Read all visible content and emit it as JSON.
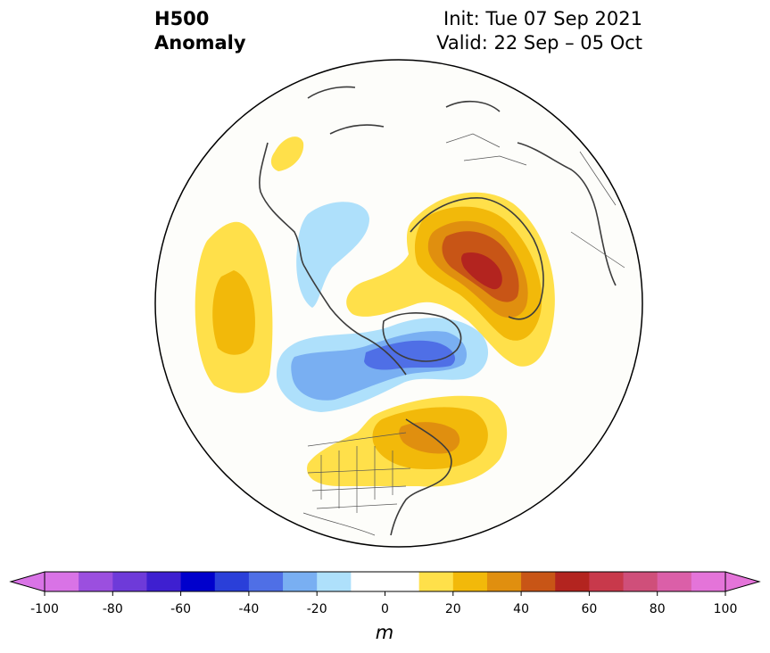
{
  "header": {
    "title_line1": "H500",
    "title_line2": "Anomaly",
    "init": "Init: Tue 07 Sep 2021",
    "valid": "Valid: 22 Sep – 05 Oct"
  },
  "map": {
    "projection": "north-polar-stereographic",
    "features": [
      "coastlines",
      "country-borders",
      "us-state-borders"
    ]
  },
  "colorbar": {
    "unit": "m",
    "extend": "both",
    "levels": [
      -100,
      -90,
      -80,
      -70,
      -60,
      -50,
      -40,
      -30,
      -20,
      -10,
      10,
      20,
      30,
      40,
      50,
      60,
      70,
      80,
      90,
      100
    ],
    "colors": [
      "#d973e6",
      "#9b4fdf",
      "#6e3ad9",
      "#3e1fd0",
      "#0000cc",
      "#2a3fd9",
      "#4f6fe6",
      "#79aff2",
      "#aee0fb",
      "#ffffff",
      "#ffe04a",
      "#f2b90a",
      "#e08f0f",
      "#c85516",
      "#b3241f",
      "#c8394b",
      "#cf4f7a",
      "#db5fa8",
      "#e474d9"
    ],
    "tick_labels": [
      "-100",
      "-80",
      "-60",
      "-40",
      "-20",
      "0",
      "20",
      "40",
      "60",
      "80",
      "100"
    ],
    "tick_values": [
      -100,
      -80,
      -60,
      -40,
      -20,
      0,
      20,
      40,
      60,
      80,
      100
    ]
  }
}
